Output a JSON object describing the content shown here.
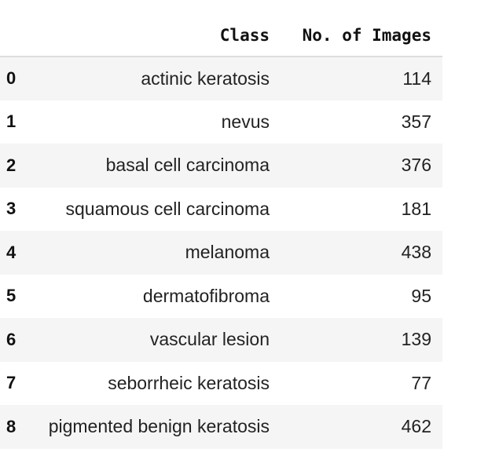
{
  "table": {
    "columns": [
      "Class",
      "No. of Images"
    ],
    "rows": [
      {
        "index": "0",
        "class": "actinic keratosis",
        "count": "114"
      },
      {
        "index": "1",
        "class": "nevus",
        "count": "357"
      },
      {
        "index": "2",
        "class": "basal cell carcinoma",
        "count": "376"
      },
      {
        "index": "3",
        "class": "squamous cell carcinoma",
        "count": "181"
      },
      {
        "index": "4",
        "class": "melanoma",
        "count": "438"
      },
      {
        "index": "5",
        "class": "dermatofibroma",
        "count": "95"
      },
      {
        "index": "6",
        "class": "vascular lesion",
        "count": "139"
      },
      {
        "index": "7",
        "class": "seborrheic keratosis",
        "count": "77"
      },
      {
        "index": "8",
        "class": "pigmented benign keratosis",
        "count": "462"
      }
    ]
  },
  "colors": {
    "row_stripe": "#f5f5f5",
    "header_border": "#dddddd",
    "text": "#111111"
  }
}
